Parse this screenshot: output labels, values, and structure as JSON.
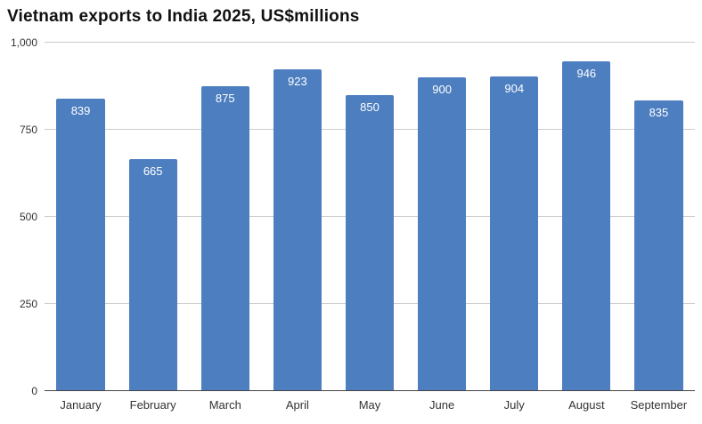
{
  "chart": {
    "title": "Vietnam exports to India 2025, US$millions"
  },
  "chart_data": {
    "type": "bar",
    "title": "Vietnam exports to India 2025, US$millions",
    "categories": [
      "January",
      "February",
      "March",
      "April",
      "May",
      "June",
      "July",
      "August",
      "September"
    ],
    "values": [
      839,
      665,
      875,
      923,
      850,
      900,
      904,
      946,
      835
    ],
    "xlabel": "",
    "ylabel": "",
    "ylim": [
      0,
      1000
    ],
    "yticks": [
      0,
      250,
      500,
      750,
      1000
    ],
    "ytick_labels": [
      "0",
      "250",
      "500",
      "750",
      "1,000"
    ],
    "grid": true,
    "legend": false,
    "bar_color": "#4d7ebf",
    "value_label_color": "#ffffff",
    "value_labels_inside_bars": true
  }
}
